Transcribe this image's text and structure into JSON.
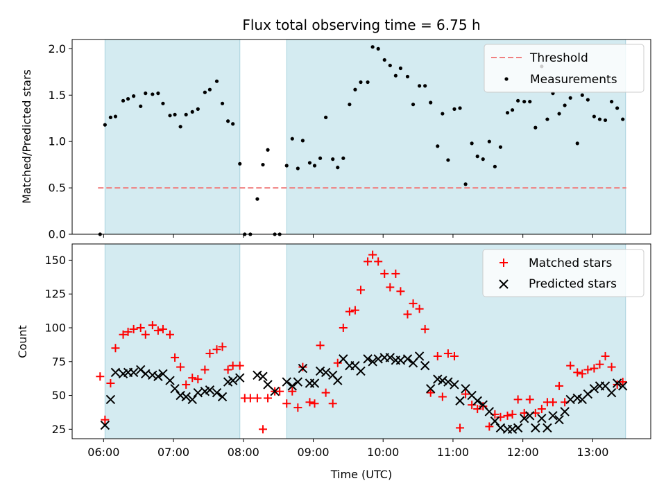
{
  "chart_data": {
    "title": "Flux total observing time = 6.75 h",
    "xlabel": "Time (UTC)",
    "x_ticks": [
      "06:00",
      "07:00",
      "08:00",
      "09:00",
      "10:00",
      "11:00",
      "12:00",
      "13:00"
    ],
    "x_tick_hours": [
      6,
      7,
      8,
      9,
      10,
      11,
      12,
      13
    ],
    "xlim_hours": [
      5.55,
      13.83
    ],
    "observing_windows_hours": [
      [
        6.02,
        7.95
      ],
      [
        8.62,
        13.47
      ]
    ],
    "window_color": "#d4ebf1",
    "top": {
      "type": "scatter",
      "ylabel": "Matched/Predicted stars",
      "ylim": [
        0,
        2.1
      ],
      "y_ticks": [
        0.0,
        0.5,
        1.0,
        1.5,
        2.0
      ],
      "y_tick_labels": [
        "0.0",
        "0.5",
        "1.0",
        "1.5",
        "2.0"
      ],
      "threshold": {
        "name": "Threshold",
        "value": 0.5,
        "color": "#f08080"
      },
      "series": [
        {
          "name": "Measurements",
          "color": "#000000",
          "marker": "dot",
          "x": [
            5.95,
            6.02,
            6.1,
            6.17,
            6.28,
            6.35,
            6.43,
            6.53,
            6.6,
            6.7,
            6.78,
            6.85,
            6.95,
            7.02,
            7.1,
            7.18,
            7.27,
            7.35,
            7.45,
            7.52,
            7.62,
            7.7,
            7.78,
            7.85,
            7.95,
            8.02,
            8.1,
            8.2,
            8.28,
            8.35,
            8.45,
            8.52,
            8.62,
            8.7,
            8.78,
            8.85,
            8.95,
            9.02,
            9.1,
            9.18,
            9.28,
            9.35,
            9.43,
            9.52,
            9.6,
            9.68,
            9.78,
            9.85,
            9.93,
            10.02,
            10.1,
            10.18,
            10.25,
            10.35,
            10.43,
            10.52,
            10.6,
            10.68,
            10.78,
            10.85,
            10.93,
            11.02,
            11.1,
            11.18,
            11.27,
            11.35,
            11.43,
            11.52,
            11.6,
            11.68,
            11.78,
            11.85,
            11.93,
            12.02,
            12.1,
            12.18,
            12.27,
            12.35,
            12.43,
            12.52,
            12.6,
            12.68,
            12.78,
            12.85,
            12.93,
            13.02,
            13.1,
            13.18,
            13.27,
            13.35,
            13.43
          ],
          "y": [
            0.0,
            1.18,
            1.26,
            1.27,
            1.44,
            1.46,
            1.49,
            1.38,
            1.52,
            1.51,
            1.52,
            1.41,
            1.28,
            1.29,
            1.16,
            1.29,
            1.32,
            1.35,
            1.53,
            1.56,
            1.65,
            1.41,
            1.22,
            1.19,
            0.76,
            0.0,
            0.0,
            0.38,
            0.75,
            0.91,
            0.0,
            0.0,
            0.74,
            1.03,
            0.71,
            1.01,
            0.77,
            0.74,
            0.82,
            1.26,
            0.81,
            0.72,
            0.82,
            1.4,
            1.56,
            1.64,
            1.64,
            2.02,
            2.0,
            1.88,
            1.82,
            1.71,
            1.79,
            1.7,
            1.4,
            1.6,
            1.6,
            1.42,
            0.95,
            1.3,
            0.8,
            1.35,
            1.36,
            0.54,
            0.98,
            0.84,
            0.81,
            1.0,
            0.73,
            0.94,
            1.31,
            1.34,
            1.44,
            1.43,
            1.43,
            1.15,
            1.81,
            1.24,
            1.52,
            1.3,
            1.39,
            1.47,
            0.98,
            1.5,
            1.45,
            1.27,
            1.24,
            1.23,
            1.43,
            1.36,
            1.24
          ]
        }
      ]
    },
    "bottom": {
      "type": "scatter",
      "ylabel": "Count",
      "ylim": [
        18,
        162
      ],
      "y_ticks": [
        25,
        50,
        75,
        100,
        125,
        150
      ],
      "y_tick_labels": [
        "25",
        "50",
        "75",
        "100",
        "125",
        "150"
      ],
      "series": [
        {
          "name": "Matched stars",
          "color": "#ff0000",
          "marker": "plus",
          "x": [
            5.95,
            6.02,
            6.1,
            6.17,
            6.28,
            6.35,
            6.43,
            6.53,
            6.6,
            6.7,
            6.78,
            6.85,
            6.95,
            7.02,
            7.1,
            7.18,
            7.27,
            7.35,
            7.45,
            7.52,
            7.62,
            7.7,
            7.78,
            7.85,
            7.95,
            8.02,
            8.1,
            8.2,
            8.28,
            8.35,
            8.45,
            8.52,
            8.62,
            8.7,
            8.78,
            8.85,
            8.95,
            9.02,
            9.1,
            9.18,
            9.28,
            9.35,
            9.43,
            9.52,
            9.6,
            9.68,
            9.78,
            9.85,
            9.93,
            10.02,
            10.1,
            10.18,
            10.25,
            10.35,
            10.43,
            10.52,
            10.6,
            10.68,
            10.78,
            10.85,
            10.93,
            11.02,
            11.1,
            11.18,
            11.27,
            11.35,
            11.43,
            11.52,
            11.6,
            11.68,
            11.78,
            11.85,
            11.93,
            12.02,
            12.1,
            12.18,
            12.27,
            12.35,
            12.43,
            12.52,
            12.6,
            12.68,
            12.78,
            12.85,
            12.93,
            13.02,
            13.1,
            13.18,
            13.27,
            13.35,
            13.43
          ],
          "y": [
            64,
            32,
            59,
            85,
            95,
            97,
            99,
            100,
            95,
            102,
            98,
            99,
            95,
            78,
            71,
            58,
            63,
            62,
            69,
            81,
            84,
            86,
            69,
            72,
            72,
            48,
            48,
            48,
            25,
            48,
            53,
            53,
            44,
            53,
            41,
            71,
            45,
            44,
            87,
            52,
            44,
            74,
            100,
            112,
            113,
            128,
            149,
            154,
            149,
            140,
            130,
            140,
            127,
            110,
            118,
            114,
            99,
            52,
            79,
            49,
            81,
            79,
            26,
            51,
            43,
            40,
            42,
            27,
            36,
            34,
            35,
            36,
            47,
            37,
            47,
            37,
            40,
            45,
            45,
            57,
            45,
            72,
            67,
            66,
            69,
            70,
            73,
            79,
            71,
            58,
            60
          ]
        },
        {
          "name": "Predicted stars",
          "color": "#000000",
          "marker": "x",
          "x": [
            6.02,
            6.1,
            6.17,
            6.28,
            6.35,
            6.43,
            6.53,
            6.6,
            6.7,
            6.78,
            6.85,
            6.95,
            7.02,
            7.1,
            7.18,
            7.27,
            7.35,
            7.45,
            7.52,
            7.62,
            7.7,
            7.78,
            7.85,
            7.95,
            8.2,
            8.28,
            8.35,
            8.45,
            8.62,
            8.7,
            8.78,
            8.85,
            8.95,
            9.02,
            9.1,
            9.18,
            9.28,
            9.35,
            9.43,
            9.52,
            9.6,
            9.68,
            9.78,
            9.85,
            9.93,
            10.02,
            10.1,
            10.18,
            10.25,
            10.35,
            10.43,
            10.52,
            10.6,
            10.68,
            10.78,
            10.85,
            10.93,
            11.02,
            11.1,
            11.18,
            11.27,
            11.35,
            11.43,
            11.52,
            11.6,
            11.68,
            11.78,
            11.85,
            11.93,
            12.02,
            12.1,
            12.18,
            12.27,
            12.35,
            12.43,
            12.52,
            12.6,
            12.68,
            12.78,
            12.85,
            12.93,
            13.02,
            13.1,
            13.18,
            13.27,
            13.35,
            13.43
          ],
          "y": [
            28,
            47,
            67,
            66,
            67,
            67,
            69,
            66,
            65,
            64,
            66,
            61,
            55,
            50,
            49,
            47,
            52,
            53,
            54,
            52,
            49,
            60,
            61,
            63,
            65,
            64,
            58,
            53,
            60,
            57,
            60,
            70,
            59,
            59,
            68,
            67,
            65,
            61,
            77,
            72,
            72,
            68,
            77,
            75,
            77,
            78,
            78,
            76,
            76,
            77,
            74,
            79,
            72,
            55,
            62,
            61,
            60,
            58,
            46,
            55,
            50,
            46,
            43,
            38,
            31,
            26,
            25,
            25,
            26,
            33,
            35,
            26,
            33,
            26,
            35,
            32,
            38,
            47,
            48,
            47,
            51,
            55,
            57,
            57,
            52,
            59,
            57
          ]
        }
      ]
    }
  }
}
